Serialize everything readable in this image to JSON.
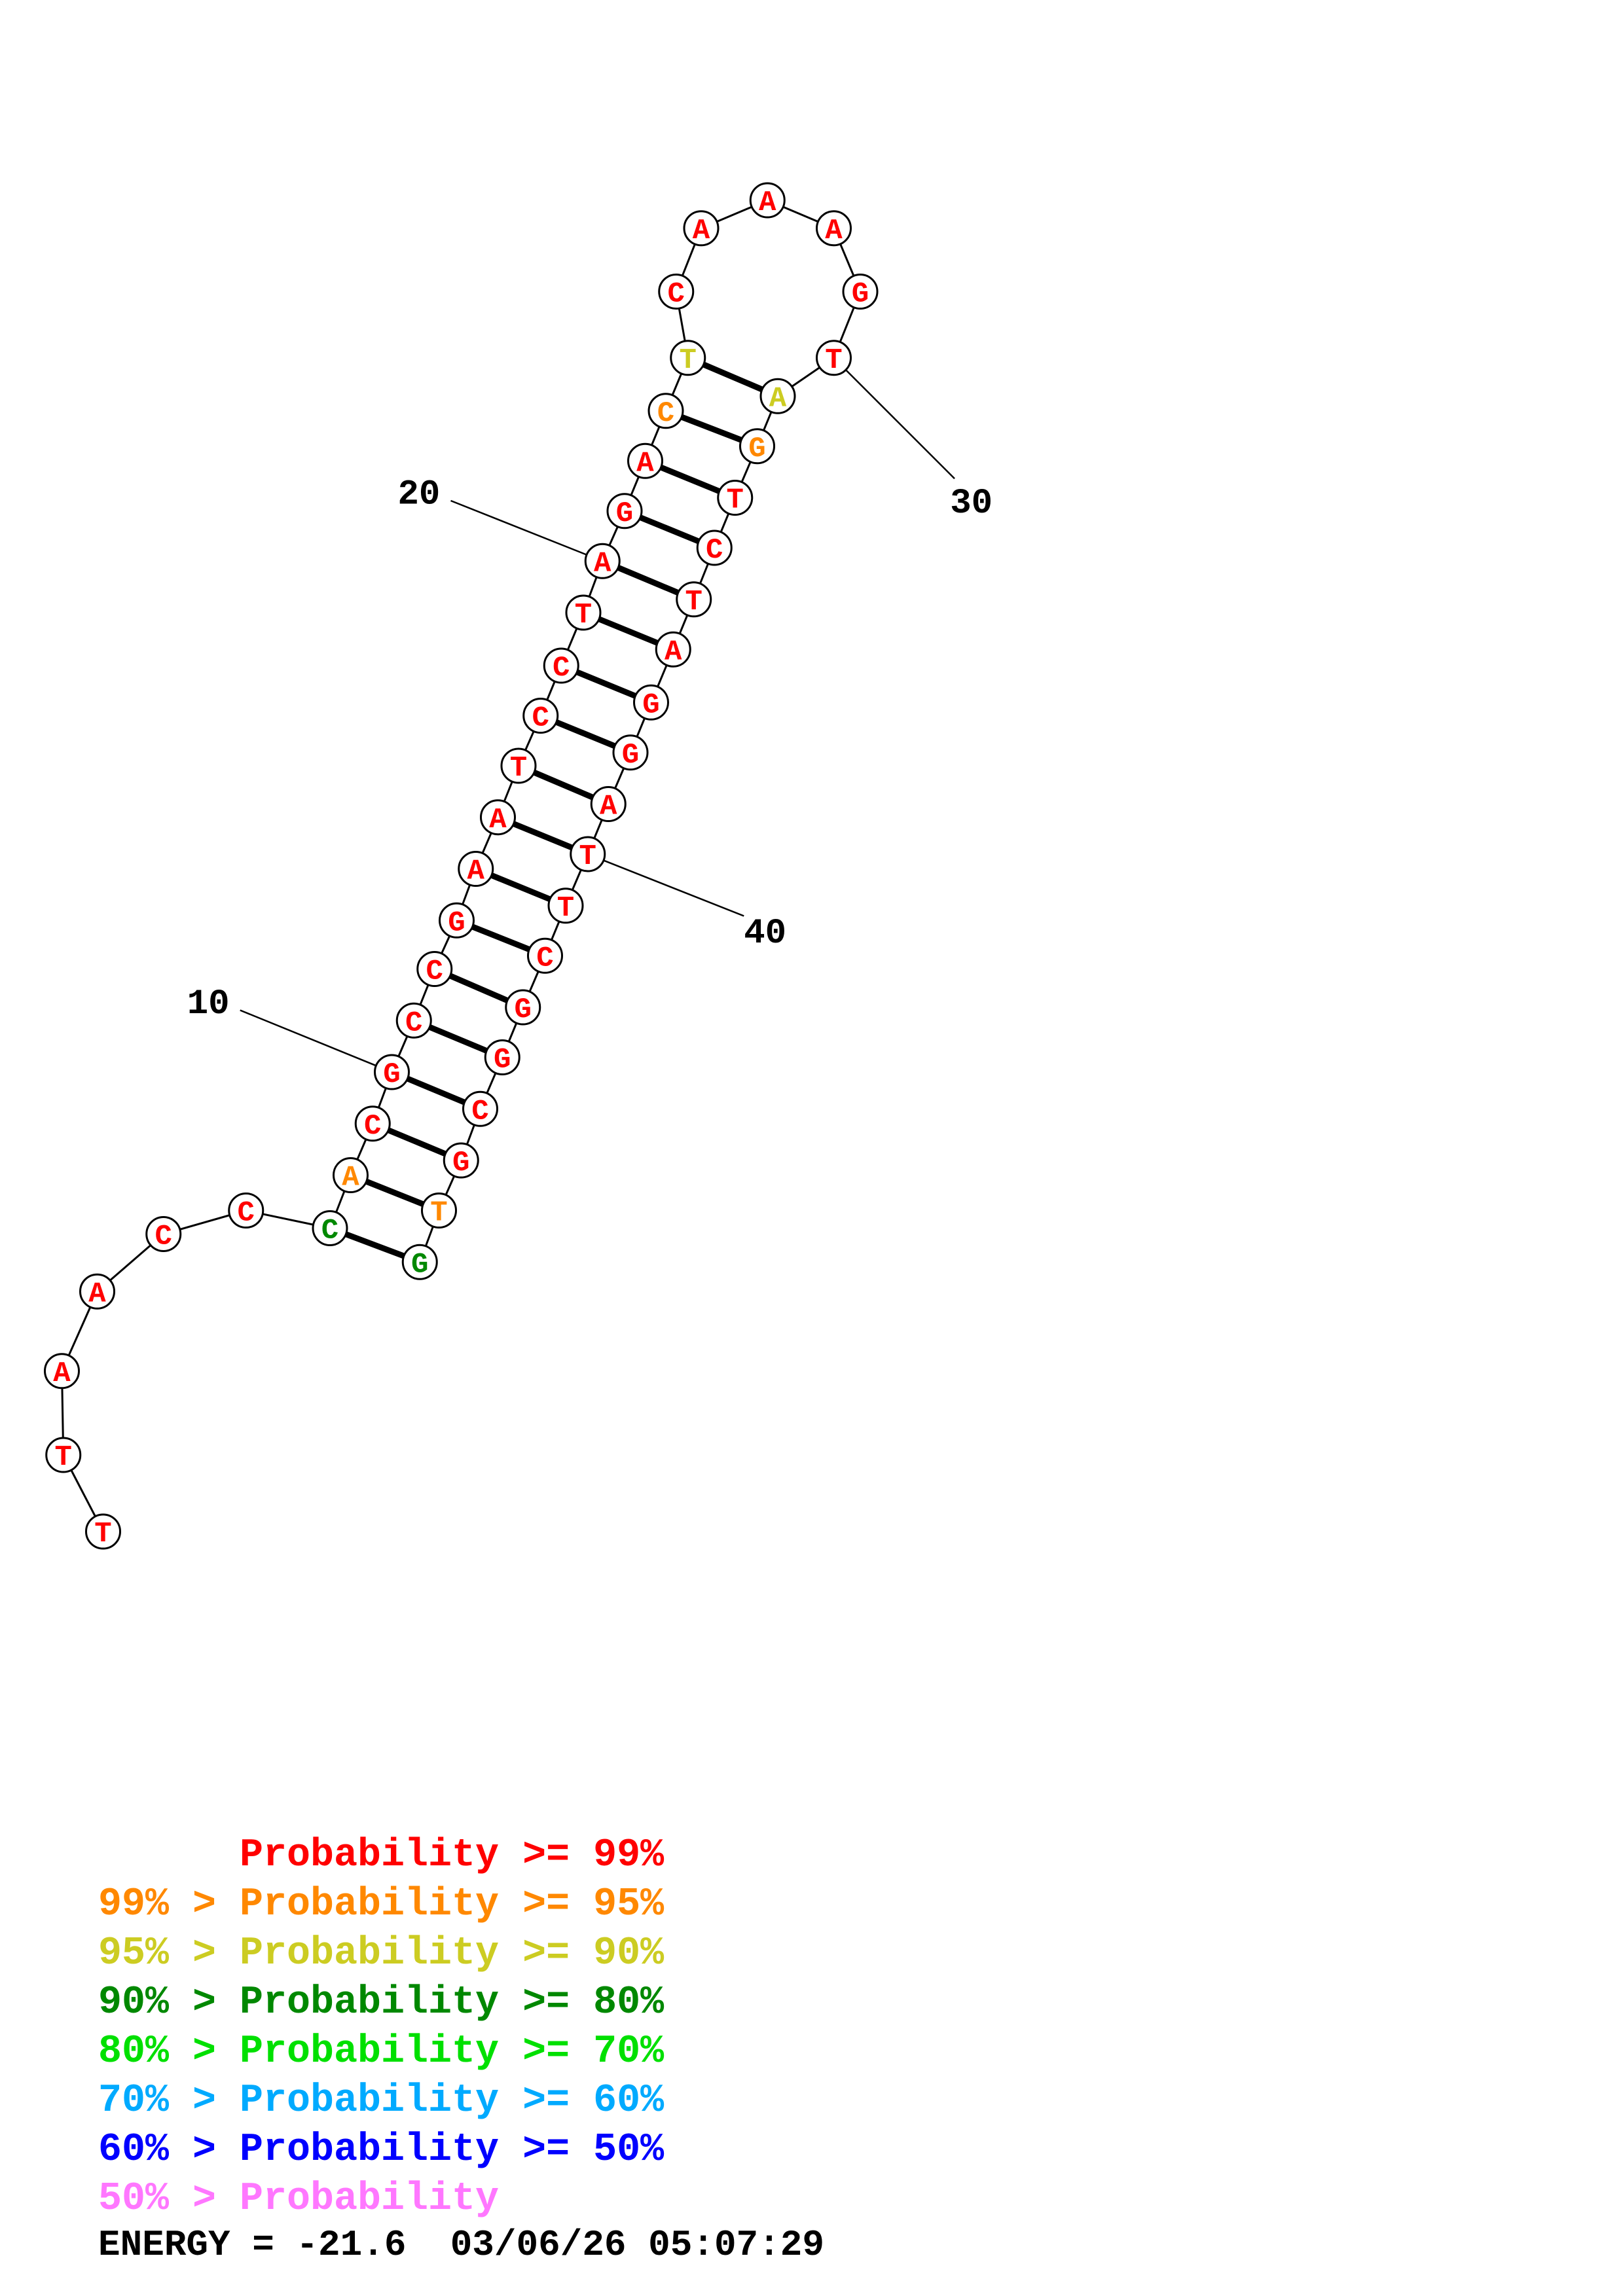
{
  "colors": {
    "p99": "#ff0000",
    "p95": "#ff8800",
    "p90": "#cccc22",
    "p80": "#008800",
    "p70": "#00e000",
    "p60": "#00aaff",
    "p50": "#0000ff",
    "plow": "#ff77ff"
  },
  "structure": {
    "nucleotides": [
      {
        "n": 1,
        "base": "T",
        "p": "p99"
      },
      {
        "n": 2,
        "base": "T",
        "p": "p99"
      },
      {
        "n": 3,
        "base": "A",
        "p": "p99"
      },
      {
        "n": 4,
        "base": "A",
        "p": "p99"
      },
      {
        "n": 5,
        "base": "C",
        "p": "p99"
      },
      {
        "n": 6,
        "base": "C",
        "p": "p99"
      },
      {
        "n": 7,
        "base": "C",
        "p": "p80"
      },
      {
        "n": 8,
        "base": "A",
        "p": "p95"
      },
      {
        "n": 9,
        "base": "C",
        "p": "p99"
      },
      {
        "n": 10,
        "base": "G",
        "p": "p99"
      },
      {
        "n": 11,
        "base": "C",
        "p": "p99"
      },
      {
        "n": 12,
        "base": "C",
        "p": "p99"
      },
      {
        "n": 13,
        "base": "G",
        "p": "p99"
      },
      {
        "n": 14,
        "base": "A",
        "p": "p99"
      },
      {
        "n": 15,
        "base": "A",
        "p": "p99"
      },
      {
        "n": 16,
        "base": "T",
        "p": "p99"
      },
      {
        "n": 17,
        "base": "C",
        "p": "p99"
      },
      {
        "n": 18,
        "base": "C",
        "p": "p99"
      },
      {
        "n": 19,
        "base": "T",
        "p": "p99"
      },
      {
        "n": 20,
        "base": "A",
        "p": "p99"
      },
      {
        "n": 21,
        "base": "G",
        "p": "p99"
      },
      {
        "n": 22,
        "base": "A",
        "p": "p99"
      },
      {
        "n": 23,
        "base": "C",
        "p": "p95"
      },
      {
        "n": 24,
        "base": "T",
        "p": "p90"
      },
      {
        "n": 25,
        "base": "C",
        "p": "p99"
      },
      {
        "n": 26,
        "base": "A",
        "p": "p99"
      },
      {
        "n": 27,
        "base": "A",
        "p": "p99"
      },
      {
        "n": 28,
        "base": "A",
        "p": "p99"
      },
      {
        "n": 29,
        "base": "G",
        "p": "p99"
      },
      {
        "n": 30,
        "base": "T",
        "p": "p99"
      },
      {
        "n": 31,
        "base": "A",
        "p": "p90"
      },
      {
        "n": 32,
        "base": "G",
        "p": "p95"
      },
      {
        "n": 33,
        "base": "T",
        "p": "p99"
      },
      {
        "n": 34,
        "base": "C",
        "p": "p99"
      },
      {
        "n": 35,
        "base": "T",
        "p": "p99"
      },
      {
        "n": 36,
        "base": "A",
        "p": "p99"
      },
      {
        "n": 37,
        "base": "G",
        "p": "p99"
      },
      {
        "n": 38,
        "base": "G",
        "p": "p99"
      },
      {
        "n": 39,
        "base": "A",
        "p": "p99"
      },
      {
        "n": 40,
        "base": "T",
        "p": "p99"
      },
      {
        "n": 41,
        "base": "T",
        "p": "p99"
      },
      {
        "n": 42,
        "base": "C",
        "p": "p99"
      },
      {
        "n": 43,
        "base": "G",
        "p": "p99"
      },
      {
        "n": 44,
        "base": "G",
        "p": "p99"
      },
      {
        "n": 45,
        "base": "C",
        "p": "p99"
      },
      {
        "n": 46,
        "base": "G",
        "p": "p99"
      },
      {
        "n": 47,
        "base": "T",
        "p": "p95"
      },
      {
        "n": 48,
        "base": "G",
        "p": "p80"
      }
    ],
    "pairs": [
      [
        7,
        48
      ],
      [
        8,
        47
      ],
      [
        9,
        46
      ],
      [
        10,
        45
      ],
      [
        11,
        44
      ],
      [
        12,
        43
      ],
      [
        13,
        42
      ],
      [
        14,
        41
      ],
      [
        15,
        40
      ],
      [
        16,
        39
      ],
      [
        17,
        38
      ],
      [
        18,
        37
      ],
      [
        19,
        36
      ],
      [
        20,
        35
      ],
      [
        21,
        34
      ],
      [
        22,
        33
      ],
      [
        23,
        32
      ],
      [
        24,
        31
      ]
    ],
    "index_labels": [
      {
        "n": 10,
        "text": "10"
      },
      {
        "n": 20,
        "text": "20"
      },
      {
        "n": 30,
        "text": "30"
      },
      {
        "n": 40,
        "text": "40"
      }
    ]
  },
  "legend": [
    {
      "prefix": "",
      "text": "Probability >= 99%",
      "color": "p99"
    },
    {
      "prefix": "99% > ",
      "text": "Probability >= 95%",
      "color": "p95"
    },
    {
      "prefix": "95% > ",
      "text": "Probability >= 90%",
      "color": "p90"
    },
    {
      "prefix": "90% > ",
      "text": "Probability >= 80%",
      "color": "p80"
    },
    {
      "prefix": "80% > ",
      "text": "Probability >= 70%",
      "color": "p70"
    },
    {
      "prefix": "70% > ",
      "text": "Probability >= 60%",
      "color": "p60"
    },
    {
      "prefix": "60% > ",
      "text": "Probability >= 50%",
      "color": "p50"
    },
    {
      "prefix": "50% > ",
      "text": "Probability",
      "color": "plow"
    }
  ],
  "footer": {
    "energy": "ENERGY = -21.6  03/06/26 05:07:29"
  }
}
